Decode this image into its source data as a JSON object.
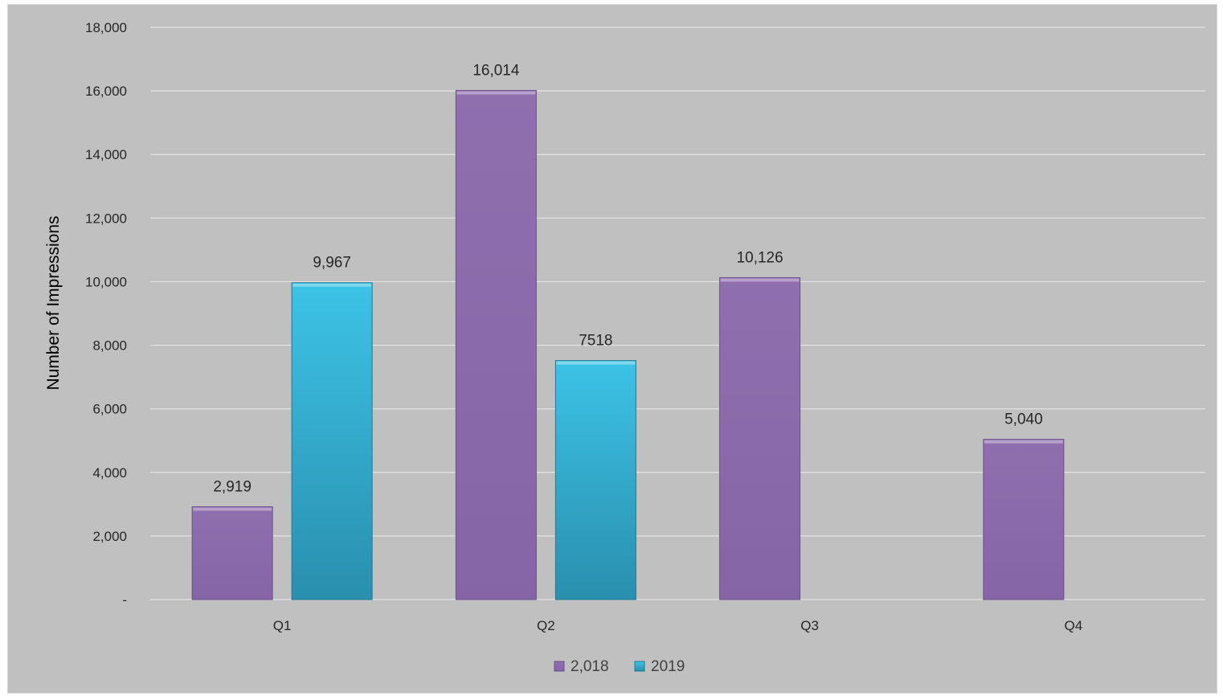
{
  "chart_data": {
    "type": "bar",
    "title": "",
    "xlabel": "",
    "ylabel": "Number of Impressions",
    "categories": [
      "Q1",
      "Q2",
      "Q3",
      "Q4"
    ],
    "series": [
      {
        "name": "2,018",
        "values": [
          2919,
          16014,
          10126,
          5040
        ],
        "labels": [
          "2,919",
          "16,014",
          "10,126",
          "5,040"
        ],
        "color": "#8b6aaa"
      },
      {
        "name": "2019",
        "values": [
          9967,
          7518,
          null,
          null
        ],
        "labels": [
          "9,967",
          "7518",
          "",
          ""
        ],
        "color": "#33b3d6"
      }
    ],
    "ylim": [
      0,
      18000
    ],
    "yticks": [
      0,
      2000,
      4000,
      6000,
      8000,
      10000,
      12000,
      14000,
      16000,
      18000
    ],
    "ytick_labels": [
      "-",
      "2,000",
      "4,000",
      "6,000",
      "8,000",
      "10,000",
      "12,000",
      "14,000",
      "16,000",
      "18,000"
    ],
    "grid": true,
    "legend_position": "bottom",
    "background_color": "#c0c0c0",
    "gridline_color": "#e4e4e4"
  }
}
